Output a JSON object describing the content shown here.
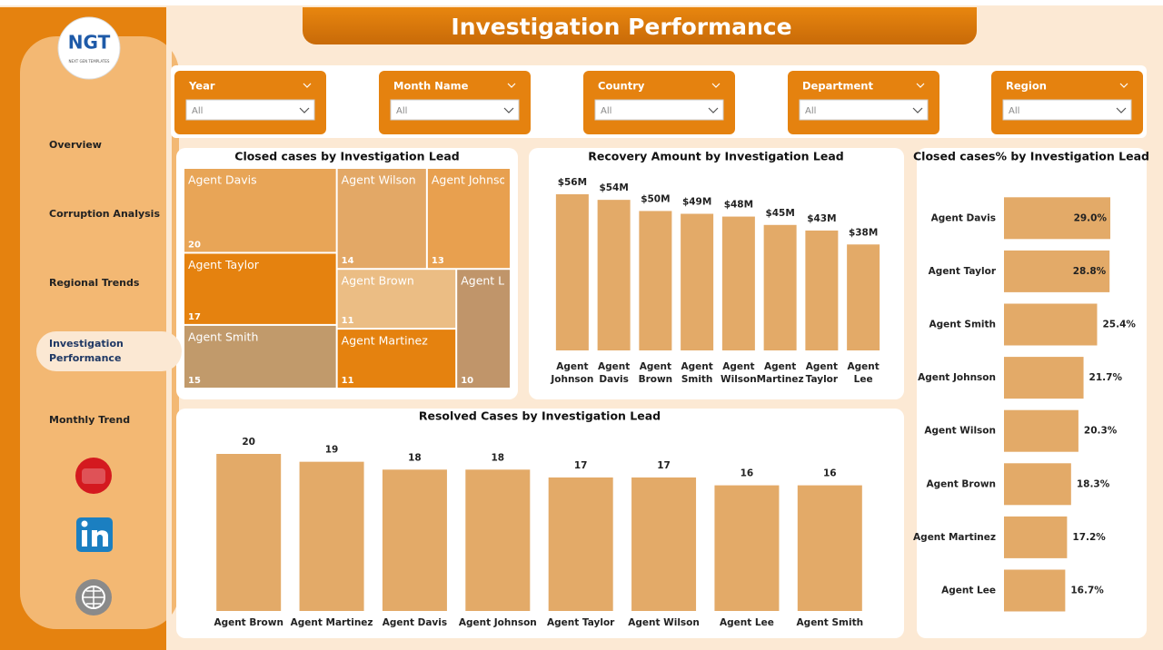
{
  "header": {
    "title": "Investigation Performance"
  },
  "logo": {
    "text": "NGT",
    "subtitle": "NEXT GEN TEMPLATES"
  },
  "nav": {
    "items": [
      "Overview",
      "Corruption Analysis",
      "Regional Trends",
      "Investigation Performance",
      "Monthly Trend"
    ],
    "active": 3
  },
  "filters": [
    {
      "label": "Year",
      "value": "All"
    },
    {
      "label": "Month Name",
      "value": "All"
    },
    {
      "label": "Country",
      "value": "All"
    },
    {
      "label": "Department",
      "value": "All"
    },
    {
      "label": "Region",
      "value": "All"
    }
  ],
  "chart_data": [
    {
      "type": "treemap",
      "title": "Closed cases by Investigation Lead",
      "categories": [
        "Agent Davis",
        "Agent Taylor",
        "Agent Smith",
        "Agent Wilson",
        "Agent Johnson",
        "Agent Brown",
        "Agent Martinez",
        "Agent Lee"
      ],
      "values": [
        20,
        17,
        15,
        14,
        13,
        11,
        11,
        10
      ],
      "colors": [
        "#e8a557",
        "#e5820f",
        "#c19a6b",
        "#e3a866",
        "#e8a04f",
        "#ebbd84",
        "#e5820f",
        "#c0956a"
      ]
    },
    {
      "type": "bar",
      "title": "Recovery Amount by Investigation Lead",
      "categories": [
        "Agent Johnson",
        "Agent Davis",
        "Agent Brown",
        "Agent Smith",
        "Agent Wilson",
        "Agent Martinez",
        "Agent Taylor",
        "Agent Lee"
      ],
      "values": [
        56,
        54,
        50,
        49,
        48,
        45,
        43,
        38
      ],
      "value_labels": [
        "$56M",
        "$54M",
        "$50M",
        "$49M",
        "$48M",
        "$45M",
        "$43M",
        "$38M"
      ],
      "color": "#e3aa68"
    },
    {
      "type": "hbar",
      "title": "Closed cases% by Investigation Lead",
      "categories": [
        "Agent Davis",
        "Agent Taylor",
        "Agent Smith",
        "Agent Johnson",
        "Agent Wilson",
        "Agent Brown",
        "Agent Martinez",
        "Agent Lee"
      ],
      "values": [
        29.0,
        28.8,
        25.4,
        21.7,
        20.3,
        18.3,
        17.2,
        16.7
      ],
      "value_labels": [
        "29.0%",
        "28.8%",
        "25.4%",
        "21.7%",
        "20.3%",
        "18.3%",
        "17.2%",
        "16.7%"
      ],
      "color": "#e3aa68"
    },
    {
      "type": "bar",
      "title": "Resolved Cases by Investigation Lead",
      "categories": [
        "Agent Brown",
        "Agent Martinez",
        "Agent Davis",
        "Agent Johnson",
        "Agent Taylor",
        "Agent Wilson",
        "Agent Lee",
        "Agent Smith"
      ],
      "values": [
        20,
        19,
        18,
        18,
        17,
        17,
        16,
        16
      ],
      "color": "#e3aa68"
    }
  ]
}
